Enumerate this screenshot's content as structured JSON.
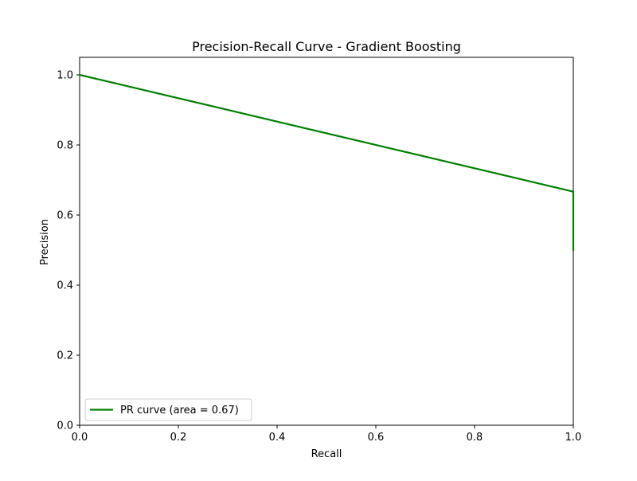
{
  "chart_data": {
    "type": "line",
    "title": "Precision-Recall Curve - Gradient Boosting",
    "xlabel": "Recall",
    "ylabel": "Precision",
    "xlim": [
      0.0,
      1.0
    ],
    "ylim": [
      0.0,
      1.05
    ],
    "xticks": [
      "0.0",
      "0.2",
      "0.4",
      "0.6",
      "0.8",
      "1.0"
    ],
    "yticks": [
      "0.0",
      "0.2",
      "0.4",
      "0.6",
      "0.8",
      "1.0"
    ],
    "grid": false,
    "legend_position": "lower-left",
    "series": [
      {
        "name": "PR curve (area = 0.67)",
        "color": "#008000",
        "x": [
          0.0,
          1.0,
          1.0
        ],
        "y": [
          1.0,
          0.6667,
          0.5
        ]
      }
    ]
  }
}
